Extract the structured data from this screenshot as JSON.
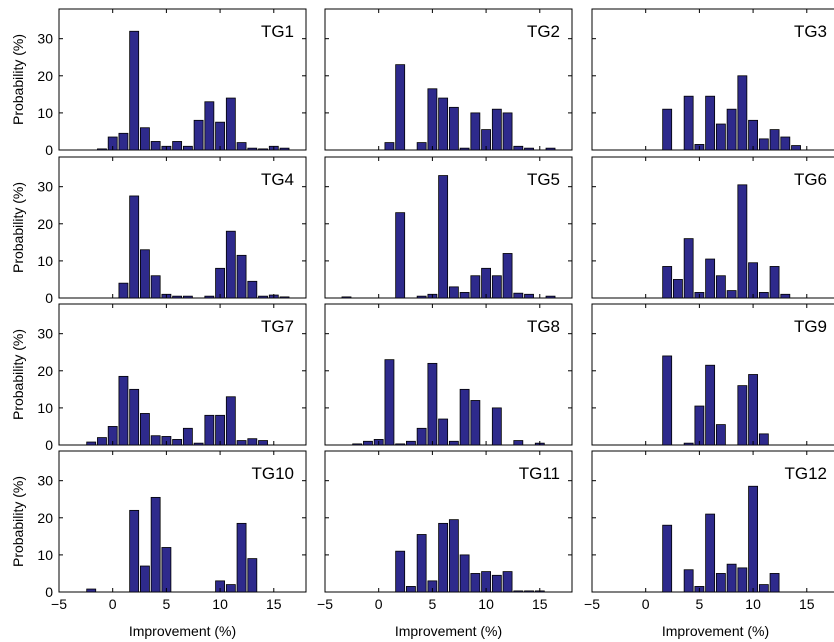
{
  "chart_data": {
    "type": "bar",
    "layout": "4x3 grid of histograms",
    "xlabel": "Improvement (%)",
    "ylabel": "Probability (%)",
    "xlim": [
      -5,
      18
    ],
    "ylim": [
      0,
      38
    ],
    "xticks": [
      -5,
      0,
      5,
      10,
      15
    ],
    "yticks": [
      0,
      10,
      20,
      30
    ],
    "bar_color": "#2e2a8c",
    "bar_edge_color": "#000000",
    "x": [
      -4,
      -3,
      -2,
      -1,
      0,
      1,
      2,
      3,
      4,
      5,
      6,
      7,
      8,
      9,
      10,
      11,
      12,
      13,
      14,
      15,
      16,
      17
    ],
    "panels": [
      {
        "title": "TG1",
        "values": [
          0,
          0,
          0,
          0.3,
          3.5,
          4.5,
          32,
          6,
          2.3,
          1,
          2.3,
          1,
          8,
          13,
          7.5,
          14,
          2,
          0.5,
          0.3,
          1,
          0.5,
          0
        ]
      },
      {
        "title": "TG2",
        "values": [
          0,
          0,
          0,
          0,
          0,
          2,
          23,
          0,
          2,
          16.5,
          14,
          11.5,
          0.5,
          10,
          5.5,
          11,
          10,
          1,
          0.5,
          0,
          0.5,
          0
        ]
      },
      {
        "title": "TG3",
        "values": [
          0,
          0,
          0,
          0,
          0,
          0,
          11,
          0,
          14.5,
          1.5,
          14.5,
          7,
          11,
          20,
          8,
          3,
          5.5,
          3.5,
          1.2,
          0,
          0,
          0
        ]
      },
      {
        "title": "TG4",
        "values": [
          0,
          0,
          0,
          0,
          0,
          4,
          27.5,
          13,
          6,
          1,
          0.5,
          0.5,
          0,
          0.5,
          8,
          18,
          11.5,
          4.5,
          0.5,
          0.8,
          0.3,
          0
        ]
      },
      {
        "title": "TG5",
        "values": [
          0,
          0.3,
          0,
          0,
          0,
          0,
          23,
          0,
          0.5,
          1,
          33,
          3,
          1.5,
          6,
          8,
          6,
          12,
          1.3,
          1,
          0,
          0.5,
          0
        ]
      },
      {
        "title": "TG6",
        "values": [
          0,
          0,
          0,
          0,
          0,
          0,
          8.5,
          5,
          16,
          1.5,
          10.5,
          6,
          2,
          30.5,
          9.5,
          1.5,
          8.5,
          1,
          0,
          0,
          0,
          0
        ]
      },
      {
        "title": "TG7",
        "values": [
          0,
          0,
          0.8,
          2,
          5,
          18.5,
          15,
          8.5,
          2.5,
          2.3,
          1.5,
          4.5,
          0.5,
          8,
          8,
          13,
          1.2,
          1.7,
          1.2,
          0,
          0,
          0
        ]
      },
      {
        "title": "TG8",
        "values": [
          0,
          0,
          0.3,
          1,
          1.5,
          23,
          0.3,
          1,
          4.5,
          22,
          7,
          1,
          15,
          12,
          0,
          10,
          0,
          1.2,
          0,
          0.5,
          0,
          0
        ]
      },
      {
        "title": "TG9",
        "values": [
          0,
          0,
          0,
          0,
          0,
          0,
          24,
          0,
          0.5,
          10.5,
          21.5,
          5.5,
          0,
          16,
          19,
          3,
          0,
          0,
          0,
          0,
          0,
          0
        ]
      },
      {
        "title": "TG10",
        "values": [
          0,
          0,
          0.8,
          0,
          0,
          0,
          22,
          7,
          25.5,
          12,
          0,
          0,
          0,
          0,
          3,
          2,
          18.5,
          9,
          0,
          0,
          0,
          0
        ]
      },
      {
        "title": "TG11",
        "values": [
          0,
          0,
          0,
          0,
          0,
          0,
          11,
          1.5,
          15.5,
          3,
          18.5,
          19.5,
          10,
          5,
          5.5,
          4.5,
          5.5,
          0.3,
          0.3,
          0.3,
          0,
          0
        ]
      },
      {
        "title": "TG12",
        "values": [
          0,
          0,
          0,
          0,
          0,
          0,
          18,
          0,
          6,
          1.5,
          21,
          5,
          7.5,
          6.5,
          28.5,
          2,
          5,
          0,
          0,
          0,
          0,
          0
        ]
      }
    ]
  }
}
